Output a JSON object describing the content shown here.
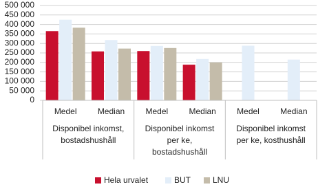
{
  "chart_data": {
    "type": "bar",
    "categories": [
      "Medel",
      "Median",
      "Medel",
      "Median",
      "Medel",
      "Median"
    ],
    "groups": [
      [
        "Disponibel inkomst,",
        "bostadshushåll"
      ],
      [
        "Disponibel inkomst",
        "per ke,",
        "bostadshushåll"
      ],
      [
        "Disponibel inkomst",
        "per ke, kosthushåll"
      ]
    ],
    "series": [
      {
        "name": "Hela urvalet",
        "color": "#c8102e",
        "values": [
          365000,
          258000,
          260000,
          188000,
          null,
          null
        ]
      },
      {
        "name": "BUT",
        "color": "#e3eef9",
        "values": [
          425000,
          318000,
          287000,
          218000,
          288000,
          215000
        ]
      },
      {
        "name": "LNU",
        "color": "#c4bcaa",
        "values": [
          383000,
          273000,
          276000,
          200000,
          null,
          null
        ]
      }
    ],
    "ylim": [
      0,
      500000
    ],
    "yticks": [
      {
        "value": 0,
        "label": "0"
      },
      {
        "value": 50000,
        "label": "50 000"
      },
      {
        "value": 100000,
        "label": "100 000"
      },
      {
        "value": 150000,
        "label": "150 000"
      },
      {
        "value": 200000,
        "label": "200 000"
      },
      {
        "value": 250000,
        "label": "250 000"
      },
      {
        "value": 300000,
        "label": "300 000"
      },
      {
        "value": 350000,
        "label": "350 000"
      },
      {
        "value": 400000,
        "label": "400 000"
      },
      {
        "value": 450000,
        "label": "450 000"
      },
      {
        "value": 500000,
        "label": "500 000"
      }
    ],
    "grid": true
  }
}
